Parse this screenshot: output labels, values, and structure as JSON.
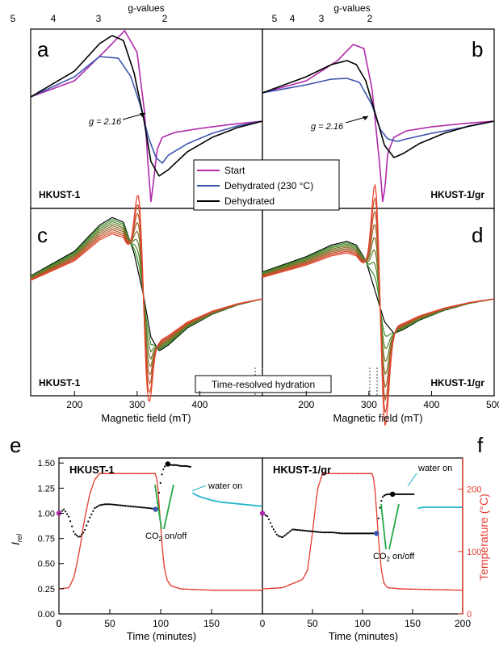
{
  "colors": {
    "start": "#b02aac",
    "dehydrated_230": "#3f55b0",
    "dehydrated": "#000000",
    "hydration_start": "#1f9a2a",
    "hydration_end": "#e8402a",
    "red": "#e33b2f",
    "cyan": "#1ab0c8",
    "green": "#27a844",
    "purple": "#b02aac",
    "blue": "#3f55b0"
  },
  "chart_data": [
    {
      "type": "line",
      "panel_letter": "a",
      "sample": "HKUST-1",
      "top_axis_title": "g-values",
      "top_ticks": [
        "5",
        "4",
        "3",
        "2"
      ],
      "annotation": "g = 2.16",
      "legend": [
        "Start",
        "Dehydrated (230 °C)",
        "Dehydrated"
      ],
      "xlim": [
        130,
        500
      ],
      "series": [
        {
          "name": "Start",
          "x": [
            130,
            200,
            250,
            280,
            300,
            312,
            318,
            322,
            326,
            332,
            340,
            360,
            400,
            450,
            500
          ],
          "y": [
            0.3,
            0.5,
            0.88,
            1.12,
            0.85,
            0.1,
            -0.6,
            -1.0,
            -0.75,
            -0.35,
            -0.2,
            -0.14,
            -0.09,
            -0.04,
            0
          ]
        },
        {
          "name": "Dehydrated (230 °C)",
          "x": [
            130,
            200,
            240,
            270,
            290,
            305,
            318,
            330,
            340,
            350,
            380,
            420,
            460,
            500
          ],
          "y": [
            0.3,
            0.55,
            0.8,
            0.78,
            0.55,
            0.2,
            -0.2,
            -0.45,
            -0.52,
            -0.42,
            -0.28,
            -0.15,
            -0.06,
            0
          ]
        },
        {
          "name": "Dehydrated",
          "x": [
            130,
            200,
            240,
            260,
            278,
            295,
            310,
            322,
            335,
            350,
            380,
            420,
            460,
            500
          ],
          "y": [
            0.3,
            0.62,
            0.96,
            1.06,
            1.0,
            0.6,
            0.05,
            -0.5,
            -0.68,
            -0.6,
            -0.38,
            -0.2,
            -0.08,
            0
          ]
        }
      ]
    },
    {
      "type": "line",
      "panel_letter": "b",
      "sample": "HKUST-1/gr",
      "top_axis_title": "g-values",
      "top_ticks": [
        "5",
        "4",
        "3",
        "2"
      ],
      "annotation": "g = 2.16",
      "xlim": [
        130,
        500
      ],
      "series": [
        {
          "name": "Start",
          "x": [
            130,
            200,
            250,
            275,
            292,
            305,
            318,
            322,
            326,
            330,
            340,
            360,
            400,
            450,
            500
          ],
          "y": [
            0.35,
            0.5,
            0.75,
            0.95,
            0.9,
            0.4,
            -0.6,
            -1.0,
            -0.8,
            -0.4,
            -0.2,
            -0.12,
            -0.07,
            -0.03,
            0
          ]
        },
        {
          "name": "Dehydrated (230 °C)",
          "x": [
            130,
            200,
            240,
            265,
            285,
            305,
            318,
            330,
            345,
            360,
            400,
            450,
            500
          ],
          "y": [
            0.35,
            0.45,
            0.52,
            0.53,
            0.48,
            0.2,
            -0.1,
            -0.22,
            -0.25,
            -0.22,
            -0.15,
            -0.08,
            0
          ]
        },
        {
          "name": "Dehydrated",
          "x": [
            130,
            200,
            240,
            265,
            280,
            295,
            310,
            325,
            340,
            355,
            380,
            420,
            460,
            500
          ],
          "y": [
            0.35,
            0.55,
            0.7,
            0.75,
            0.7,
            0.5,
            0.1,
            -0.3,
            -0.45,
            -0.4,
            -0.28,
            -0.15,
            -0.06,
            0
          ]
        }
      ]
    },
    {
      "type": "line",
      "panel_letter": "c",
      "sample": "HKUST-1",
      "center_label": "Time-resolved hydration",
      "xlabel": "Magnetic field (mT)",
      "xticks": [
        200,
        300,
        400
      ],
      "xlim": [
        130,
        500
      ]
    },
    {
      "type": "line",
      "panel_letter": "d",
      "sample": "HKUST-1/gr",
      "xlabel": "Magnetic field (mT)",
      "xticks": [
        200,
        300,
        400,
        500
      ],
      "xlim": [
        130,
        500
      ]
    },
    {
      "type": "scatter",
      "panel_letter": "e",
      "sample": "HKUST-1",
      "xlabel": "Time (minutes)",
      "ylabel_left": "I",
      "ylabel_left_sub": "rel",
      "xticks": [
        0,
        50,
        100,
        150
      ],
      "yticks_left": [
        "0.00",
        "0.25",
        "0.50",
        "0.75",
        "1.00",
        "1.25",
        "1.50"
      ],
      "xlim": [
        0,
        200
      ],
      "ylim_left": [
        0,
        1.55
      ],
      "annotations": [
        "water on",
        "CO",
        "2",
        " on/off"
      ],
      "signal": {
        "x": [
          0,
          5,
          10,
          15,
          20,
          25,
          30,
          35,
          40,
          45,
          50,
          60,
          70,
          80,
          90,
          95
        ],
        "y": [
          1.0,
          1.04,
          0.96,
          0.8,
          0.76,
          0.82,
          0.95,
          1.05,
          1.08,
          1.09,
          1.09,
          1.08,
          1.07,
          1.06,
          1.05,
          1.04
        ]
      },
      "signal_rise": {
        "x": [
          97,
          99,
          101,
          103,
          105,
          107,
          110,
          115,
          120,
          125,
          130
        ],
        "y": [
          1.1,
          1.25,
          1.38,
          1.45,
          1.48,
          1.49,
          1.48,
          1.48,
          1.47,
          1.47,
          1.46
        ]
      },
      "signal_water": {
        "x": [
          132,
          135,
          140,
          150,
          160,
          170,
          180,
          190,
          200
        ],
        "y": [
          1.2,
          1.18,
          1.16,
          1.13,
          1.11,
          1.1,
          1.09,
          1.08,
          1.07
        ]
      },
      "temperature": {
        "x": [
          0,
          10,
          15,
          20,
          25,
          30,
          35,
          40,
          45,
          95,
          97,
          100,
          103,
          106,
          110,
          120,
          150,
          200
        ],
        "y": [
          40,
          42,
          60,
          100,
          150,
          190,
          215,
          225,
          225,
          225,
          210,
          140,
          80,
          55,
          45,
          40,
          38,
          38
        ]
      }
    },
    {
      "type": "scatter",
      "panel_letter": "f",
      "sample": "HKUST-1/gr",
      "xlabel": "Time (minutes)",
      "ylabel_right": "Temperature (°C)",
      "xticks": [
        50,
        100,
        150,
        200
      ],
      "yticks_right": [
        "0",
        "100",
        "200"
      ],
      "xlim": [
        0,
        200
      ],
      "annotations": [
        "water on",
        "CO",
        "2",
        " on/off"
      ],
      "signal": {
        "x": [
          0,
          5,
          10,
          15,
          20,
          25,
          30,
          40,
          50,
          60,
          70,
          80,
          90,
          100,
          110,
          114
        ],
        "y": [
          1.0,
          0.97,
          0.86,
          0.78,
          0.76,
          0.8,
          0.84,
          0.83,
          0.82,
          0.81,
          0.81,
          0.8,
          0.8,
          0.8,
          0.8,
          0.8
        ]
      },
      "signal_rise": {
        "x": [
          116,
          118,
          120,
          122,
          125,
          130,
          140,
          150,
          152
        ],
        "y": [
          0.95,
          1.1,
          1.16,
          1.18,
          1.19,
          1.19,
          1.19,
          1.19,
          1.19
        ]
      },
      "signal_water": {
        "x": [
          156,
          160,
          170,
          180,
          190,
          200
        ],
        "y": [
          1.05,
          1.06,
          1.06,
          1.06,
          1.06,
          1.06
        ]
      },
      "temperature": {
        "x": [
          0,
          20,
          40,
          45,
          50,
          55,
          60,
          110,
          112,
          115,
          118,
          121,
          125,
          140,
          200
        ],
        "y": [
          40,
          42,
          55,
          70,
          130,
          200,
          225,
          225,
          210,
          140,
          80,
          50,
          42,
          40,
          38
        ]
      }
    }
  ]
}
